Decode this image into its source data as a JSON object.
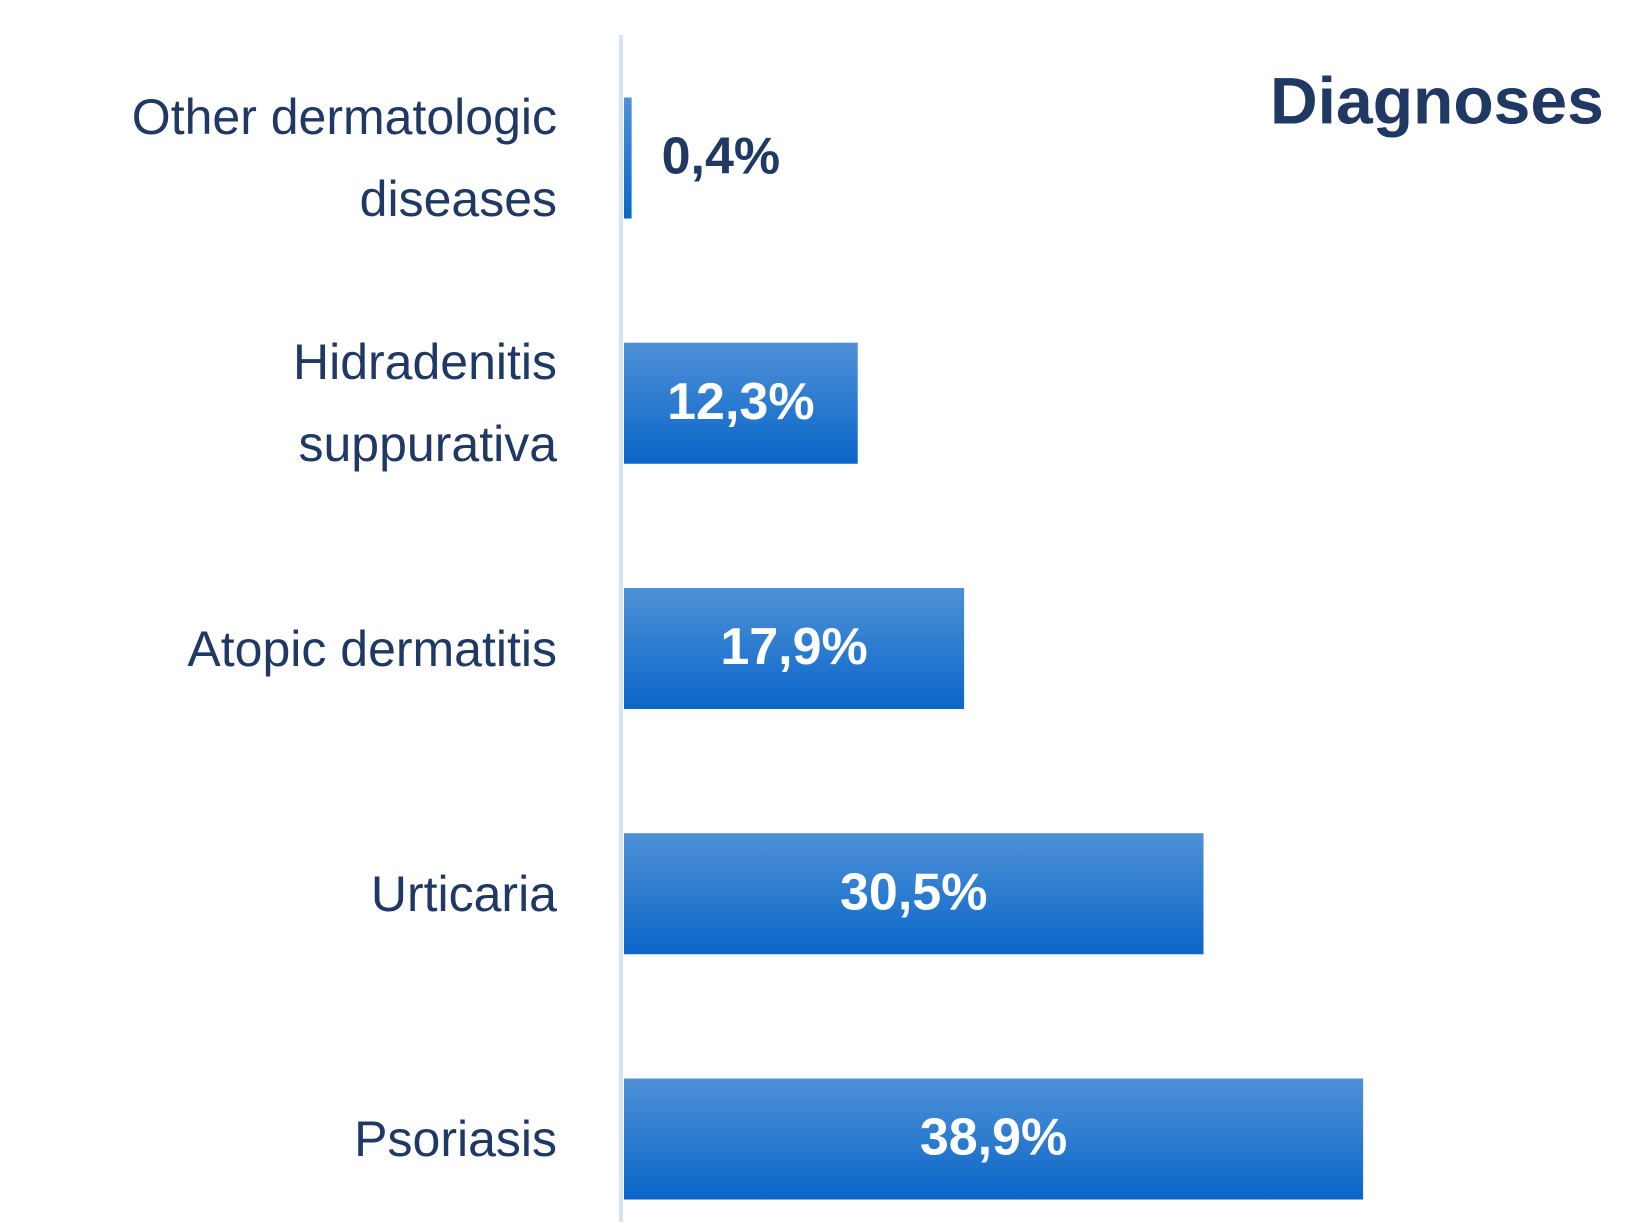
{
  "chart_data": {
    "type": "bar",
    "orientation": "horizontal",
    "title": "Diagnoses",
    "categories": [
      "Other dermatologic\ndiseases",
      "Hidradenitis\nsuppurativa",
      "Atopic dermatitis",
      "Urticaria",
      "Psoriasis"
    ],
    "values": [
      0.4,
      12.3,
      17.9,
      30.5,
      38.9
    ],
    "value_labels": [
      "0,4%",
      "12,3%",
      "17,9%",
      "30,5%",
      "38,9%"
    ],
    "color": "#0a66c8"
  }
}
